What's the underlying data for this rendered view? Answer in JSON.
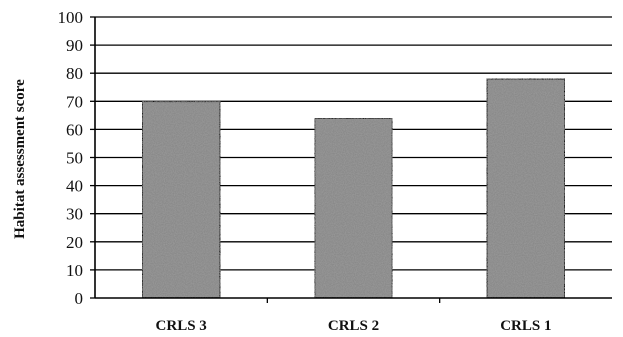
{
  "chart_data": {
    "type": "bar",
    "categories": [
      "CRLS 3",
      "CRLS 2",
      "CRLS 1"
    ],
    "values": [
      70,
      64,
      78
    ],
    "title": "",
    "xlabel": "",
    "ylabel": "Habitat assessment score",
    "ylim": [
      0,
      100
    ],
    "yticks": [
      "0",
      "10",
      "20",
      "30",
      "40",
      "50",
      "60",
      "70",
      "80",
      "90",
      "100"
    ],
    "grid": true,
    "bar_color": "#8a8a8a"
  }
}
